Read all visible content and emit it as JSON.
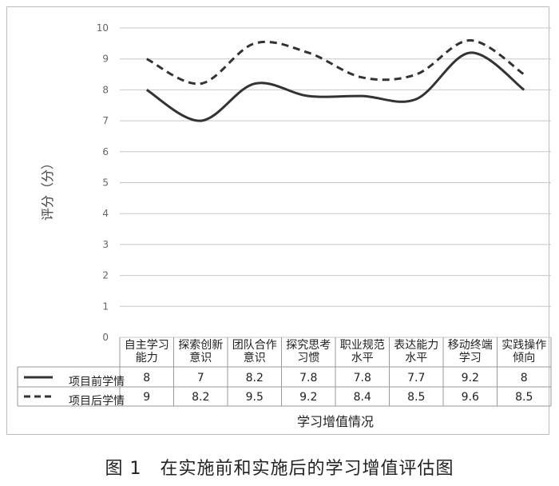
{
  "chart_data": {
    "type": "line",
    "title": "",
    "xlabel": "学习增值情况",
    "ylabel": "评分（分）",
    "ylim": [
      0,
      10
    ],
    "yticks": [
      "0",
      "1",
      "2",
      "3",
      "4",
      "5",
      "6",
      "7",
      "8",
      "9",
      "10"
    ],
    "grid": true,
    "categories": [
      [
        "自主学习",
        "能力"
      ],
      [
        "探索创新",
        "意识"
      ],
      [
        "团队合作",
        "意识"
      ],
      [
        "探究思考",
        "习惯"
      ],
      [
        "职业规范",
        "水平"
      ],
      [
        "表达能力",
        "水平"
      ],
      [
        "移动终端",
        "学习"
      ],
      [
        "实践操作",
        "倾向"
      ]
    ],
    "series": [
      {
        "name": "项目前学情",
        "values": [
          8,
          7,
          8.2,
          7.8,
          7.8,
          7.7,
          9.2,
          8
        ],
        "style": "solid",
        "color": "#333333"
      },
      {
        "name": "项目后学情",
        "values": [
          9,
          8.2,
          9.5,
          9.2,
          8.4,
          8.5,
          9.6,
          8.5
        ],
        "style": "dashed",
        "color": "#333333"
      }
    ],
    "table_values": [
      [
        "8",
        "7",
        "8.2",
        "7.8",
        "7.8",
        "7.7",
        "9.2",
        "8"
      ],
      [
        "9",
        "8.2",
        "9.5",
        "9.2",
        "8.4",
        "8.5",
        "9.6",
        "8.5"
      ]
    ]
  },
  "caption": "图 1　在实施前和实施后的学习增值评估图"
}
